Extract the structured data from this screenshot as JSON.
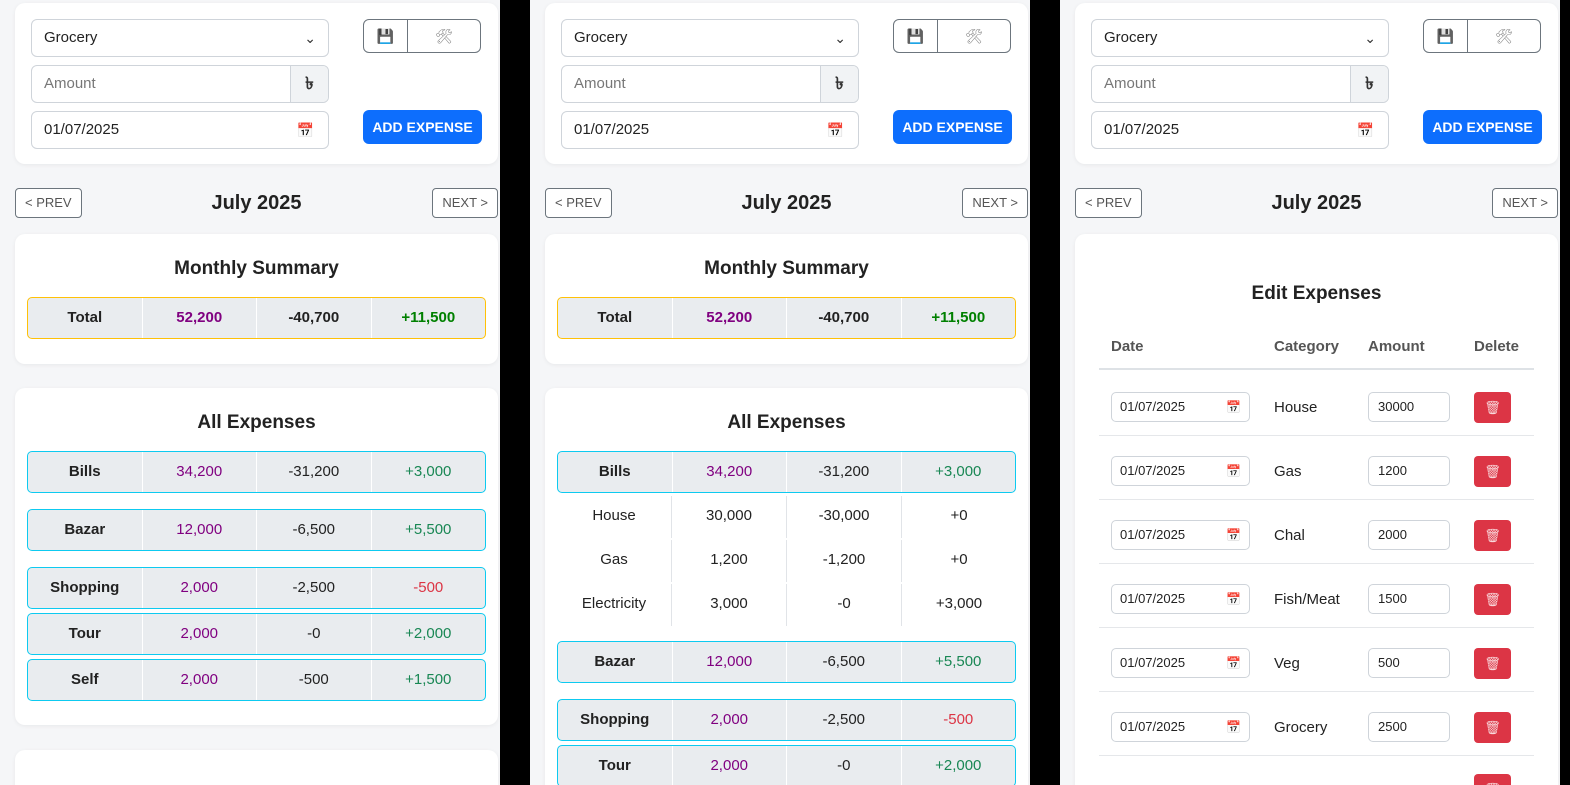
{
  "form": {
    "category_selected": "Grocery",
    "amount_placeholder": "Amount",
    "currency_symbol": "৳",
    "date_value": "01/07/2025",
    "save_icon_glyph": "💾",
    "tools_icon_glyph": "🛠",
    "add_expense_label": "ADD EXPENSE"
  },
  "nav": {
    "prev_label": "< PREV",
    "next_label": "NEXT >",
    "month_title": "July 2025"
  },
  "summary": {
    "title": "Monthly Summary",
    "row": [
      "Total",
      "52,200",
      "-40,700",
      "+11,500"
    ]
  },
  "expenses": {
    "title": "All Expenses",
    "categories": [
      {
        "cells": [
          "Bills",
          "34,200",
          "-31,200",
          "+3,000"
        ]
      },
      {
        "cells": [
          "Bazar",
          "12,000",
          "-6,500",
          "+5,500"
        ]
      },
      {
        "cells": [
          "Shopping",
          "2,000",
          "-2,500",
          "-500"
        ]
      },
      {
        "cells": [
          "Tour",
          "2,000",
          "-0",
          "+2,000"
        ]
      },
      {
        "cells": [
          "Self",
          "2,000",
          "-500",
          "+1,500"
        ]
      }
    ],
    "bills_breakdown": [
      {
        "cells": [
          "House",
          "30,000",
          "-30,000",
          "+0"
        ]
      },
      {
        "cells": [
          "Gas",
          "1,200",
          "-1,200",
          "+0"
        ]
      },
      {
        "cells": [
          "Electricity",
          "3,000",
          "-0",
          "+3,000"
        ]
      }
    ]
  },
  "edit": {
    "title": "Edit Expenses",
    "headers": [
      "Date",
      "Category",
      "Amount",
      "Delete"
    ],
    "delete_icon": "trash-icon",
    "rows": [
      {
        "date": "01/07/2025",
        "category": "House",
        "amount": "30000"
      },
      {
        "date": "01/07/2025",
        "category": "Gas",
        "amount": "1200"
      },
      {
        "date": "01/07/2025",
        "category": "Chal",
        "amount": "2000"
      },
      {
        "date": "01/07/2025",
        "category": "Fish/Meat",
        "amount": "1500"
      },
      {
        "date": "01/07/2025",
        "category": "Veg",
        "amount": "500"
      },
      {
        "date": "01/07/2025",
        "category": "Grocery",
        "amount": "2500"
      }
    ]
  },
  "colors": {
    "primary": "#0d6efd",
    "danger": "#dc3545",
    "summary_border": "#ffc107",
    "category_border": "#0dcaf0",
    "income": "#800080",
    "positive": "#198754"
  }
}
